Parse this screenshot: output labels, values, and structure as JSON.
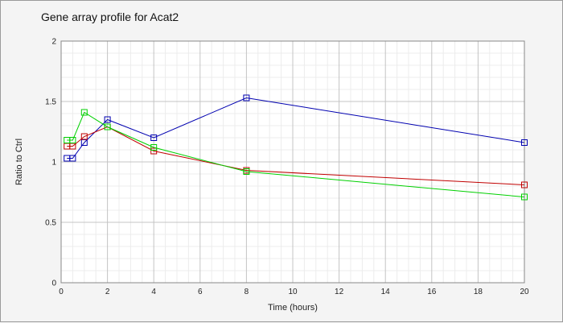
{
  "chart_data": {
    "type": "line",
    "title": "Gene array profile for Acat2",
    "xlabel": "Time (hours)",
    "ylabel": "Ratio to Ctrl",
    "xlim": [
      0,
      20
    ],
    "ylim": [
      0,
      2
    ],
    "x_ticks": [
      "0",
      "2",
      "4",
      "6",
      "8",
      "10",
      "12",
      "14",
      "16",
      "18",
      "20"
    ],
    "y_ticks": [
      "0",
      "0.5",
      "1",
      "1.5",
      "2"
    ],
    "grid": true,
    "legend": "none",
    "series": [
      {
        "color": "#0000b0",
        "x": [
          0.25,
          0.5,
          1,
          2,
          4,
          8,
          20
        ],
        "values": [
          1.03,
          1.03,
          1.16,
          1.35,
          1.2,
          1.53,
          1.16
        ]
      },
      {
        "color": "#c00000",
        "x": [
          0.25,
          0.5,
          1,
          2,
          4,
          8,
          20
        ],
        "values": [
          1.13,
          1.13,
          1.21,
          1.29,
          1.09,
          0.93,
          0.81
        ]
      },
      {
        "color": "#00d000",
        "x": [
          0.25,
          0.5,
          1,
          2,
          4,
          8,
          20
        ],
        "values": [
          1.18,
          1.18,
          1.41,
          1.29,
          1.12,
          0.92,
          0.71
        ]
      }
    ]
  }
}
